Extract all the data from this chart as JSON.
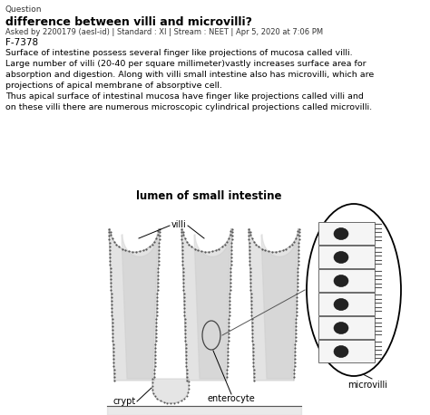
{
  "title_label": "Question",
  "question_title": "difference between villi and microvilli?",
  "asked_by": "Asked by 2200179 (aesl-id) | Standard : XI | Stream : NEET | Apr 5, 2020 at 7:06 PM",
  "code": "F-7378",
  "para1_lines": [
    "Surface of intestine possess several finger like projections of mucosa called villi.",
    "Large number of villi (20-40 per square millimeter)vastly increases surface area for",
    "absorption and digestion. Along with villi small intestine also has microvilli, which are",
    "projections of apical membrane of absorptive cell."
  ],
  "para2_lines": [
    "Thus apical surface of intestinal mucosa have finger like projections called villi and",
    "on these villi there are numerous microscopic cylindrical projections called microvilli."
  ],
  "diagram_title": "lumen of small intestine",
  "label_villi": "villi",
  "label_crypt": "crypt",
  "label_enterocyte": "enterocyte",
  "label_microvilli": "microvilli",
  "bg_color": "#ffffff",
  "text_color": "#000000"
}
